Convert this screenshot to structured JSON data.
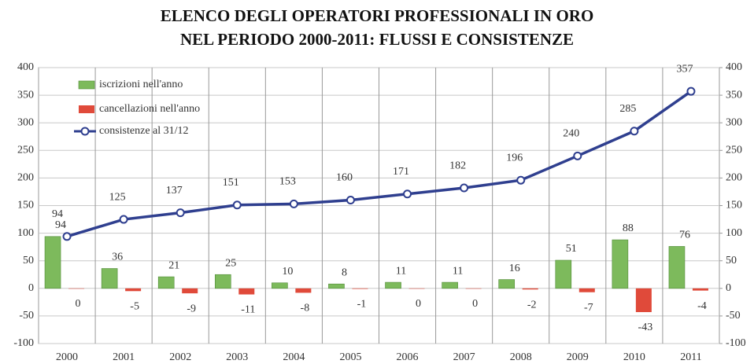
{
  "chart_data": {
    "type": "bar-line",
    "title": "ELENCO DEGLI OPERATORI PROFESSIONALI IN ORO",
    "subtitle": "NEL PERIODO 2000-2011: FLUSSI E CONSISTENZE",
    "categories": [
      "2000",
      "2001",
      "2002",
      "2003",
      "2004",
      "2005",
      "2006",
      "2007",
      "2008",
      "2009",
      "2010",
      "2011"
    ],
    "series": [
      {
        "name": "iscrizioni nell'anno",
        "color": "#7dba5c",
        "values": [
          94,
          36,
          21,
          25,
          10,
          8,
          11,
          11,
          16,
          51,
          88,
          76
        ]
      },
      {
        "name": "cancellazioni nell'anno",
        "color": "#e04a3a",
        "values": [
          0,
          -5,
          -9,
          -11,
          -8,
          -1,
          0,
          0,
          -2,
          -7,
          -43,
          -4
        ]
      },
      {
        "name": "consistenze al 31/12",
        "color": "#2f3f8f",
        "values": [
          94,
          125,
          137,
          151,
          153,
          160,
          171,
          182,
          196,
          240,
          285,
          357
        ]
      }
    ],
    "ylim": [
      -100,
      400
    ],
    "yticks": [
      -100,
      -50,
      0,
      50,
      100,
      150,
      200,
      250,
      300,
      350,
      400
    ],
    "y2lim": [
      -100,
      400
    ],
    "y2ticks": [
      -100,
      -50,
      0,
      50,
      100,
      150,
      200,
      250,
      300,
      350,
      400
    ],
    "grid": true,
    "legend": "upper left"
  }
}
